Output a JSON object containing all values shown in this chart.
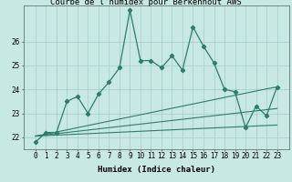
{
  "title": "Courbe de l'humidex pour Berkenhout AWS",
  "xlabel": "Humidex (Indice chaleur)",
  "x_data": [
    0,
    1,
    2,
    3,
    4,
    5,
    6,
    7,
    8,
    9,
    10,
    11,
    12,
    13,
    14,
    15,
    16,
    17,
    18,
    19,
    20,
    21,
    22,
    23
  ],
  "main_line": [
    21.8,
    22.2,
    22.2,
    23.5,
    23.7,
    23.0,
    23.8,
    24.3,
    24.9,
    27.3,
    25.2,
    25.2,
    24.9,
    25.4,
    24.8,
    26.6,
    25.8,
    25.1,
    24.0,
    23.9,
    22.4,
    23.3,
    22.9,
    24.1
  ],
  "trend_line1": [
    22.05,
    22.13,
    22.22,
    22.31,
    22.4,
    22.49,
    22.58,
    22.67,
    22.76,
    22.85,
    22.94,
    23.03,
    23.12,
    23.21,
    23.3,
    23.39,
    23.48,
    23.57,
    23.66,
    23.75,
    23.84,
    23.93,
    24.02,
    24.1
  ],
  "trend_line2": [
    22.05,
    22.1,
    22.15,
    22.2,
    22.25,
    22.3,
    22.35,
    22.4,
    22.45,
    22.5,
    22.55,
    22.6,
    22.65,
    22.7,
    22.75,
    22.8,
    22.85,
    22.9,
    22.95,
    23.0,
    23.05,
    23.1,
    23.15,
    23.2
  ],
  "trend_line3": [
    22.05,
    22.07,
    22.09,
    22.11,
    22.13,
    22.15,
    22.17,
    22.19,
    22.21,
    22.23,
    22.25,
    22.27,
    22.29,
    22.31,
    22.33,
    22.35,
    22.37,
    22.39,
    22.41,
    22.43,
    22.45,
    22.47,
    22.49,
    22.51
  ],
  "ylim": [
    21.5,
    27.5
  ],
  "yticks": [
    22,
    23,
    24,
    25,
    26
  ],
  "xticks": [
    0,
    1,
    2,
    3,
    4,
    5,
    6,
    7,
    8,
    9,
    10,
    11,
    12,
    13,
    14,
    15,
    16,
    17,
    18,
    19,
    20,
    21,
    22,
    23
  ],
  "line_color": "#2d7d6b",
  "background_color": "#c8e8e4",
  "grid_color": "#a8ccca",
  "title_fontsize": 6.5,
  "label_fontsize": 6.5,
  "tick_fontsize": 5.5
}
